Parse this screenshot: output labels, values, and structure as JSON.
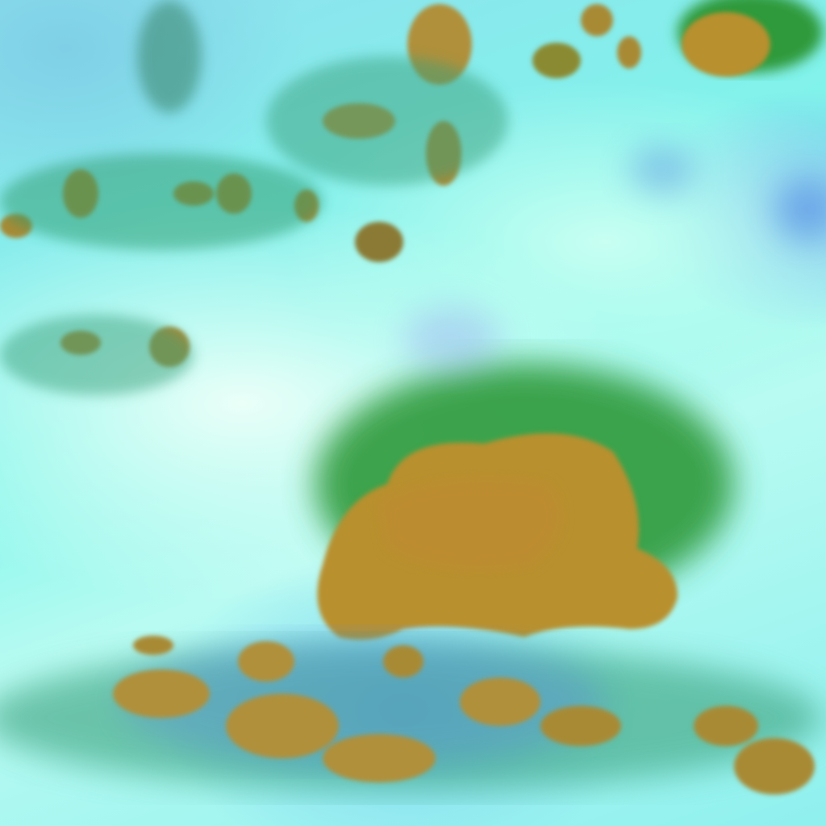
{
  "image": {
    "kind": "false-color satellite cloud imagery",
    "colors": {
      "background_cyan": "#7ff6ea",
      "haze_white": "#eafff8",
      "cloud_top_olive": "#b8902e",
      "cloud_edge_green": "#2e9a3a",
      "shadow_blue": "#5a8ed8"
    }
  }
}
